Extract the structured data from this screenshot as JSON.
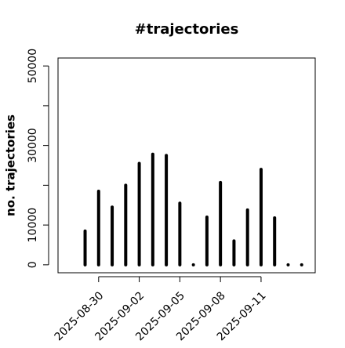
{
  "chart_data": {
    "type": "spike",
    "title": "#trajectories",
    "y_label": "no. trajectories",
    "x": [
      "2025-08-29",
      "2025-08-30",
      "2025-08-31",
      "2025-09-01",
      "2025-09-02",
      "2025-09-03",
      "2025-09-04",
      "2025-09-05",
      "2025-09-06",
      "2025-09-07",
      "2025-09-08",
      "2025-09-09",
      "2025-09-10",
      "2025-09-11",
      "2025-09-12",
      "2025-09-13",
      "2025-09-14"
    ],
    "values": [
      8500,
      18500,
      14500,
      20000,
      25500,
      27800,
      27500,
      15500,
      0,
      12000,
      20700,
      6000,
      13800,
      24000,
      11800,
      0,
      0
    ],
    "color": "#000000",
    "xlim": [
      "2025-08-27",
      "2025-09-15"
    ],
    "xticks": [
      "2025-08-30",
      "2025-09-02",
      "2025-09-05",
      "2025-09-08",
      "2025-09-11"
    ],
    "ylim": [
      -2000,
      52000
    ],
    "yticks": [
      0,
      10000,
      30000,
      50000
    ],
    "yminor": [
      20000,
      40000
    ]
  }
}
